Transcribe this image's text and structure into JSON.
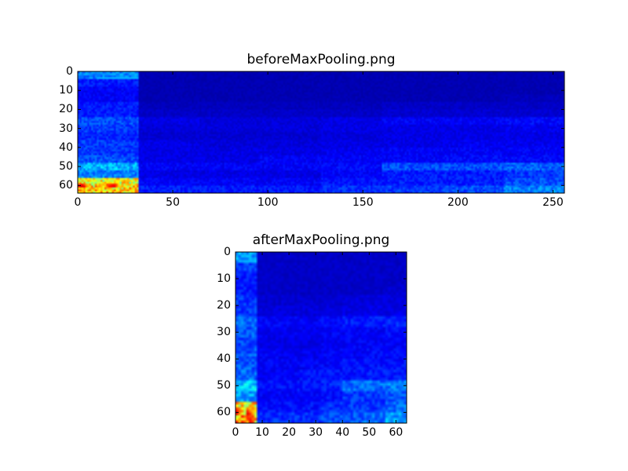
{
  "chart_data": [
    {
      "type": "heatmap",
      "title": "beforeMaxPooling.png",
      "colormap": "jet",
      "shape": [
        64,
        256
      ],
      "xlim": [
        0,
        256
      ],
      "ylim": [
        64,
        0
      ],
      "xticks": [
        "0",
        "50",
        "100",
        "150",
        "200",
        "250"
      ],
      "yticks": [
        "0",
        "10",
        "20",
        "30",
        "40",
        "50",
        "60"
      ],
      "value_range": [
        0,
        1
      ],
      "coarse_grid_note_rows": "16 bands of 4 rows; 8 bands of 32 cols",
      "coarse_grid": [
        [
          0.25,
          0.05,
          0.05,
          0.05,
          0.05,
          0.05,
          0.05,
          0.05
        ],
        [
          0.15,
          0.05,
          0.05,
          0.05,
          0.05,
          0.05,
          0.05,
          0.05
        ],
        [
          0.12,
          0.05,
          0.05,
          0.05,
          0.05,
          0.05,
          0.05,
          0.05
        ],
        [
          0.12,
          0.05,
          0.05,
          0.05,
          0.05,
          0.05,
          0.05,
          0.06
        ],
        [
          0.15,
          0.06,
          0.06,
          0.06,
          0.06,
          0.07,
          0.07,
          0.07
        ],
        [
          0.15,
          0.07,
          0.07,
          0.07,
          0.07,
          0.08,
          0.08,
          0.08
        ],
        [
          0.2,
          0.1,
          0.09,
          0.09,
          0.1,
          0.12,
          0.12,
          0.13
        ],
        [
          0.18,
          0.09,
          0.09,
          0.09,
          0.1,
          0.1,
          0.1,
          0.11
        ],
        [
          0.16,
          0.08,
          0.08,
          0.08,
          0.09,
          0.1,
          0.1,
          0.1
        ],
        [
          0.18,
          0.1,
          0.09,
          0.09,
          0.1,
          0.1,
          0.11,
          0.11
        ],
        [
          0.18,
          0.1,
          0.1,
          0.1,
          0.11,
          0.12,
          0.12,
          0.12
        ],
        [
          0.2,
          0.1,
          0.1,
          0.12,
          0.12,
          0.12,
          0.13,
          0.13
        ],
        [
          0.3,
          0.12,
          0.12,
          0.12,
          0.13,
          0.2,
          0.2,
          0.22
        ],
        [
          0.25,
          0.1,
          0.1,
          0.1,
          0.12,
          0.15,
          0.15,
          0.18
        ],
        [
          0.6,
          0.12,
          0.12,
          0.12,
          0.14,
          0.15,
          0.15,
          0.2
        ],
        [
          0.65,
          0.15,
          0.15,
          0.15,
          0.17,
          0.18,
          0.2,
          0.25
        ]
      ]
    },
    {
      "type": "heatmap",
      "title": "afterMaxPooling.png",
      "colormap": "jet",
      "shape": [
        64,
        64
      ],
      "xlim": [
        0,
        64
      ],
      "ylim": [
        64,
        0
      ],
      "xticks": [
        "0",
        "10",
        "20",
        "30",
        "40",
        "50",
        "60"
      ],
      "yticks": [
        "0",
        "10",
        "20",
        "30",
        "40",
        "50",
        "60"
      ],
      "value_range": [
        0,
        1
      ],
      "coarse_grid_note_rows": "16 bands of 4 rows; 8 bands of 8 cols",
      "coarse_grid": [
        [
          0.28,
          0.07,
          0.07,
          0.07,
          0.07,
          0.07,
          0.07,
          0.07
        ],
        [
          0.18,
          0.07,
          0.07,
          0.07,
          0.07,
          0.07,
          0.07,
          0.07
        ],
        [
          0.15,
          0.07,
          0.07,
          0.07,
          0.07,
          0.07,
          0.07,
          0.07
        ],
        [
          0.15,
          0.07,
          0.07,
          0.07,
          0.07,
          0.07,
          0.07,
          0.08
        ],
        [
          0.18,
          0.08,
          0.08,
          0.08,
          0.08,
          0.09,
          0.09,
          0.09
        ],
        [
          0.18,
          0.09,
          0.09,
          0.09,
          0.09,
          0.1,
          0.1,
          0.1
        ],
        [
          0.23,
          0.12,
          0.12,
          0.12,
          0.13,
          0.15,
          0.15,
          0.16
        ],
        [
          0.21,
          0.11,
          0.11,
          0.11,
          0.12,
          0.12,
          0.12,
          0.13
        ],
        [
          0.19,
          0.1,
          0.1,
          0.1,
          0.11,
          0.12,
          0.12,
          0.12
        ],
        [
          0.21,
          0.12,
          0.11,
          0.11,
          0.12,
          0.12,
          0.13,
          0.13
        ],
        [
          0.21,
          0.12,
          0.12,
          0.12,
          0.13,
          0.14,
          0.14,
          0.14
        ],
        [
          0.23,
          0.12,
          0.12,
          0.14,
          0.14,
          0.14,
          0.15,
          0.15
        ],
        [
          0.33,
          0.14,
          0.14,
          0.14,
          0.16,
          0.23,
          0.23,
          0.25
        ],
        [
          0.28,
          0.12,
          0.12,
          0.12,
          0.14,
          0.18,
          0.18,
          0.21
        ],
        [
          0.65,
          0.14,
          0.14,
          0.14,
          0.17,
          0.18,
          0.18,
          0.23
        ],
        [
          0.7,
          0.17,
          0.17,
          0.17,
          0.2,
          0.21,
          0.23,
          0.28
        ]
      ]
    }
  ]
}
